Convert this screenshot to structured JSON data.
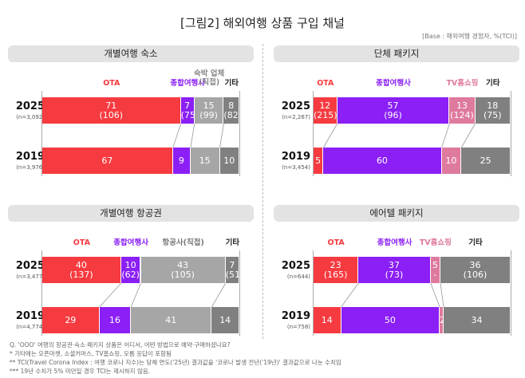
{
  "title": "[그림2] 해외여행 상품 구입 채널",
  "base": "[Base : 해외여행 경험자, %(TCI)]",
  "colors": {
    "OTA": "#f63b40",
    "종합여행사": "#8b1ff5",
    "숙박 업체\n(직접)": "#a6a6a6",
    "항공사(직접)": "#a6a6a6",
    "TV홈쇼핑": "#de7a9e",
    "기타": "#808080"
  },
  "label_colors": {
    "OTA": "#f63b40",
    "종합여행사": "#8b1ff5",
    "숙박 업체\n(직접)": "#888",
    "항공사(직접)": "#777",
    "TV홈쇼핑": "#de7a9e",
    "기타": "#222"
  },
  "chart_data": [
    {
      "type": "bar",
      "stacked": true,
      "orientation": "horizontal",
      "title": "개별여행 숙소",
      "categories": [
        "OTA",
        "종합여행사",
        "숙박 업체\n(직접)",
        "기타"
      ],
      "rows": [
        {
          "year": "2025",
          "n": "(n=3,092)",
          "values": [
            71,
            7,
            15,
            8
          ],
          "tci": [
            "(106)",
            "(75)",
            "(99)",
            "(82)"
          ]
        },
        {
          "year": "2019",
          "n": "(n=3,976)",
          "values": [
            67,
            9,
            15,
            10
          ]
        }
      ]
    },
    {
      "type": "bar",
      "stacked": true,
      "orientation": "horizontal",
      "title": "단체 패키지",
      "categories": [
        "OTA",
        "종합여행사",
        "TV홈쇼핑",
        "기타"
      ],
      "rows": [
        {
          "year": "2025",
          "n": "(n=2,267)",
          "values": [
            12,
            57,
            13,
            18
          ],
          "tci": [
            "(215)",
            "(96)",
            "(124)",
            "(75)"
          ]
        },
        {
          "year": "2019",
          "n": "(n=3,454)",
          "values": [
            5,
            60,
            10,
            25
          ]
        }
      ]
    },
    {
      "type": "bar",
      "stacked": true,
      "orientation": "horizontal",
      "title": "개별여행 항공권",
      "categories": [
        "OTA",
        "종합여행사",
        "항공사(직접)",
        "기타"
      ],
      "rows": [
        {
          "year": "2025",
          "n": "(n=3,477)",
          "values": [
            40,
            10,
            43,
            7
          ],
          "tci": [
            "(137)",
            "(62)",
            "(105)",
            "(51)"
          ]
        },
        {
          "year": "2019",
          "n": "(n=4,774)",
          "values": [
            29,
            16,
            41,
            14
          ]
        }
      ]
    },
    {
      "type": "bar",
      "stacked": true,
      "orientation": "horizontal",
      "title": "에어텔 패키지",
      "categories": [
        "OTA",
        "종합여행사",
        "TV홈쇼핑",
        "기타"
      ],
      "rows": [
        {
          "year": "2025",
          "n": "(n=644)",
          "values": [
            23,
            37,
            5,
            36
          ],
          "tci": [
            "(165)",
            "(73)",
            "-",
            "(106)"
          ]
        },
        {
          "year": "2019",
          "n": "(n=758)",
          "values": [
            14,
            50,
            2,
            34
          ]
        }
      ]
    }
  ],
  "notes": [
    "Q. 'OOO' 여행의 항공권·숙소·패키지 상품은 어디서, 어떤 방법으로 예약·구매하셨나요?",
    "* 기타에는 오픈마켓, 소셜커머스, TV홈쇼핑, 모름 응답이 포함됨",
    "** TCI(Travel Corona Index : 여행 코로나 지수)는 당해 연도('25년) 결과값을 '코로나 발생 전년('19년)' 결과값으로 나눈 수치임",
    "*** 19년 수치가 5% 미만일 경우 TCI는 제시하지 않음."
  ]
}
